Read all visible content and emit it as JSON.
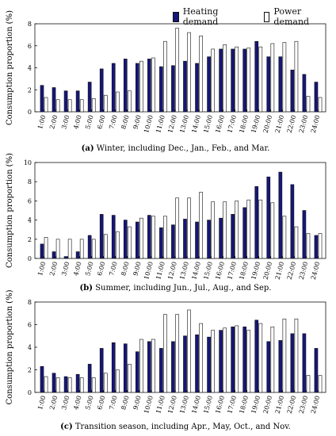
{
  "colors": {
    "heating": "#16167a",
    "power": "#ffffff",
    "stroke": "#111111"
  },
  "chart_data": [
    {
      "type": "bar",
      "caption_bold": "(a)",
      "caption_rest": " Winter, including Dec., Jan., Feb., and Mar.",
      "ylabel": "Consumption proportion (%)",
      "ylim": [
        0,
        8
      ],
      "yticks": [
        0,
        2,
        4,
        6,
        8
      ],
      "categories": [
        "1:00",
        "2:00",
        "3:00",
        "4:00",
        "5:00",
        "6:00",
        "7:00",
        "8:00",
        "9:00",
        "10:00",
        "11:00",
        "12:00",
        "13:00",
        "14:00",
        "15:00",
        "16:00",
        "17:00",
        "18:00",
        "19:00",
        "20:00",
        "21:00",
        "22:00",
        "23:00",
        "24:00"
      ],
      "series": [
        {
          "name": "Heating demand",
          "values": [
            2.4,
            2.2,
            1.9,
            1.9,
            2.7,
            3.9,
            4.4,
            4.8,
            4.4,
            4.8,
            4.1,
            4.2,
            4.6,
            4.4,
            5.0,
            5.7,
            5.7,
            5.7,
            6.4,
            5.0,
            5.0,
            3.8,
            3.4,
            2.7
          ]
        },
        {
          "name": "Power demand",
          "values": [
            1.3,
            1.1,
            1.1,
            1.1,
            1.2,
            1.5,
            1.8,
            1.9,
            4.6,
            4.9,
            6.4,
            7.6,
            7.2,
            6.9,
            5.7,
            6.1,
            5.9,
            5.8,
            5.9,
            6.2,
            6.3,
            6.4,
            1.4,
            1.3
          ]
        }
      ]
    },
    {
      "type": "bar",
      "caption_bold": "(b)",
      "caption_rest": " Summer, including Jun., Jul., Aug., and Sep.",
      "ylabel": "Consumption proportion (%)",
      "ylim": [
        0,
        10
      ],
      "yticks": [
        0,
        2,
        4,
        6,
        8,
        10
      ],
      "categories": [
        "1:00",
        "2:00",
        "3:00",
        "4:00",
        "5:00",
        "6:00",
        "7:00",
        "8:00",
        "9:00",
        "10:00",
        "11:00",
        "12:00",
        "13:00",
        "14:00",
        "15:00",
        "16:00",
        "17:00",
        "18:00",
        "19:00",
        "20:00",
        "21:00",
        "22:00",
        "23:00",
        "24:00"
      ],
      "series": [
        {
          "name": "Heating demand",
          "values": [
            1.5,
            0.7,
            0.2,
            0.7,
            2.4,
            4.6,
            4.5,
            4.0,
            3.8,
            4.5,
            3.2,
            3.5,
            4.1,
            3.8,
            4.0,
            4.2,
            4.6,
            5.3,
            7.5,
            8.5,
            9.0,
            7.7,
            5.0,
            2.4
          ]
        },
        {
          "name": "Power demand",
          "values": [
            2.2,
            2.0,
            2.0,
            2.0,
            2.0,
            2.5,
            2.8,
            3.3,
            4.2,
            4.4,
            4.4,
            6.3,
            6.3,
            6.9,
            5.9,
            5.9,
            6.0,
            6.1,
            6.1,
            5.8,
            4.4,
            3.3,
            2.6,
            2.6
          ]
        }
      ]
    },
    {
      "type": "bar",
      "caption_bold": "(c)",
      "caption_rest": " Transition season, including Apr., May, Oct., and Nov.",
      "ylabel": "Consumption proportion (%)",
      "ylim": [
        0,
        8
      ],
      "yticks": [
        0,
        2,
        4,
        6,
        8
      ],
      "categories": [
        "1:00",
        "2:00",
        "3:00",
        "4:00",
        "5:00",
        "6:00",
        "7:00",
        "8:00",
        "9:00",
        "10:00",
        "11:00",
        "12:00",
        "13:00",
        "14:00",
        "15:00",
        "16:00",
        "17:00",
        "18:00",
        "19:00",
        "20:00",
        "21:00",
        "22:00",
        "23:00",
        "24:00"
      ],
      "series": [
        {
          "name": "Heating demand",
          "values": [
            2.3,
            1.7,
            1.4,
            1.6,
            2.5,
            3.9,
            4.4,
            4.3,
            3.6,
            4.5,
            3.9,
            4.5,
            5.0,
            5.1,
            4.9,
            5.5,
            5.8,
            5.8,
            6.4,
            4.5,
            4.6,
            5.2,
            5.2,
            3.9
          ]
        },
        {
          "name": "Power demand",
          "values": [
            1.4,
            1.3,
            1.3,
            1.3,
            1.3,
            1.7,
            2.0,
            2.5,
            4.7,
            4.7,
            6.9,
            6.9,
            7.3,
            6.1,
            5.5,
            5.7,
            5.9,
            5.5,
            6.1,
            5.8,
            6.5,
            6.5,
            1.5,
            1.5
          ]
        }
      ]
    }
  ]
}
